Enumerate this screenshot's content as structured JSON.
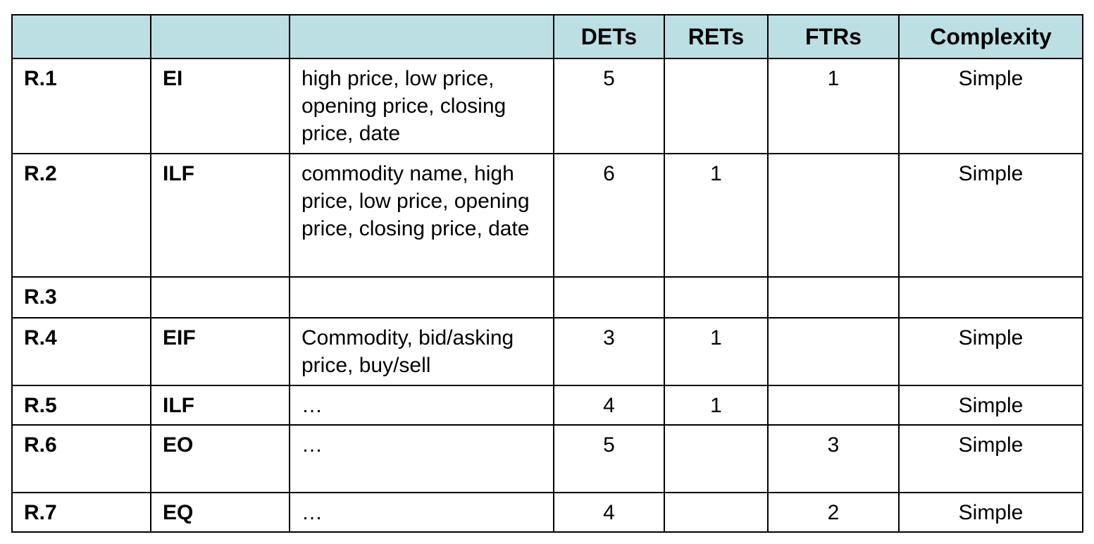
{
  "table": {
    "headers": [
      "",
      "",
      "",
      "DETs",
      "RETs",
      "FTRs",
      "Complexity"
    ],
    "rows": [
      {
        "id": "R.1",
        "type": "EI",
        "description": "high price, low price, opening price, closing price, date",
        "dets": "5",
        "rets": "",
        "ftrs": "1",
        "complexity": "Simple"
      },
      {
        "id": "R.2",
        "type": "ILF",
        "description": "commodity name, high price, low price, opening price, closing price, date",
        "dets": "6",
        "rets": "1",
        "ftrs": "",
        "complexity": "Simple"
      },
      {
        "id": "R.3",
        "type": "",
        "description": "",
        "dets": "",
        "rets": "",
        "ftrs": "",
        "complexity": ""
      },
      {
        "id": "R.4",
        "type": "EIF",
        "description": "Commodity, bid/asking price, buy/sell",
        "dets": "3",
        "rets": "1",
        "ftrs": "",
        "complexity": "Simple"
      },
      {
        "id": "R.5",
        "type": "ILF",
        "description": "…",
        "dets": "4",
        "rets": "1",
        "ftrs": "",
        "complexity": "Simple"
      },
      {
        "id": "R.6",
        "type": "EO",
        "description": "…",
        "dets": "5",
        "rets": "",
        "ftrs": "3",
        "complexity": "Simple"
      },
      {
        "id": "R.7",
        "type": "EQ",
        "description": "…",
        "dets": "4",
        "rets": "",
        "ftrs": "2",
        "complexity": "Simple"
      }
    ]
  }
}
